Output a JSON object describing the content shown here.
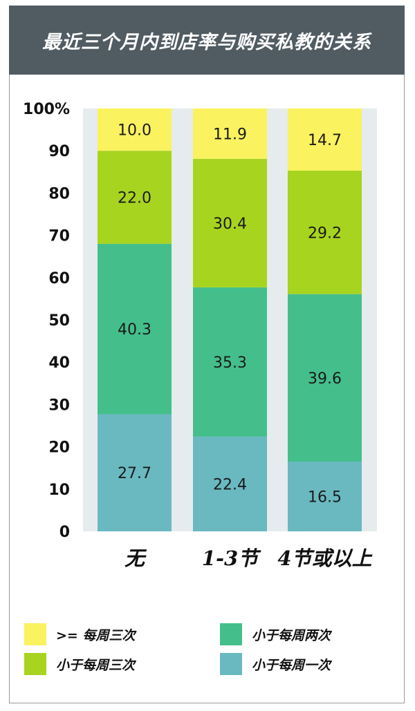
{
  "title": "最近三个月内到店率与购买私教的关系",
  "chart_data": {
    "type": "bar",
    "stacked": true,
    "categories": [
      "无",
      "1-3节",
      "4节或以上"
    ],
    "series": [
      {
        "name": "小于每周一次",
        "values": [
          27.7,
          22.4,
          16.5
        ],
        "color": "#6ab9c1"
      },
      {
        "name": "小于每周两次",
        "values": [
          40.3,
          35.3,
          39.6
        ],
        "color": "#44bf8b"
      },
      {
        "name": "小于每周三次",
        "values": [
          22.0,
          30.4,
          29.2
        ],
        "color": "#a7d41f"
      },
      {
        "name": ">= 每周三次",
        "values": [
          10.0,
          11.9,
          14.7
        ],
        "color": "#faf25f"
      }
    ],
    "y_ticks": [
      "0",
      "10",
      "20",
      "30",
      "40",
      "50",
      "60",
      "70",
      "80",
      "90",
      "100%"
    ],
    "ylim": [
      0,
      100
    ]
  },
  "legend": [
    {
      "label": ">= 每周三次",
      "color": "#faf25f"
    },
    {
      "label": "小于每周两次",
      "color": "#44bf8b"
    },
    {
      "label": "小于每周三次",
      "color": "#a7d41f"
    },
    {
      "label": "小于每周一次",
      "color": "#6ab9c1"
    }
  ]
}
